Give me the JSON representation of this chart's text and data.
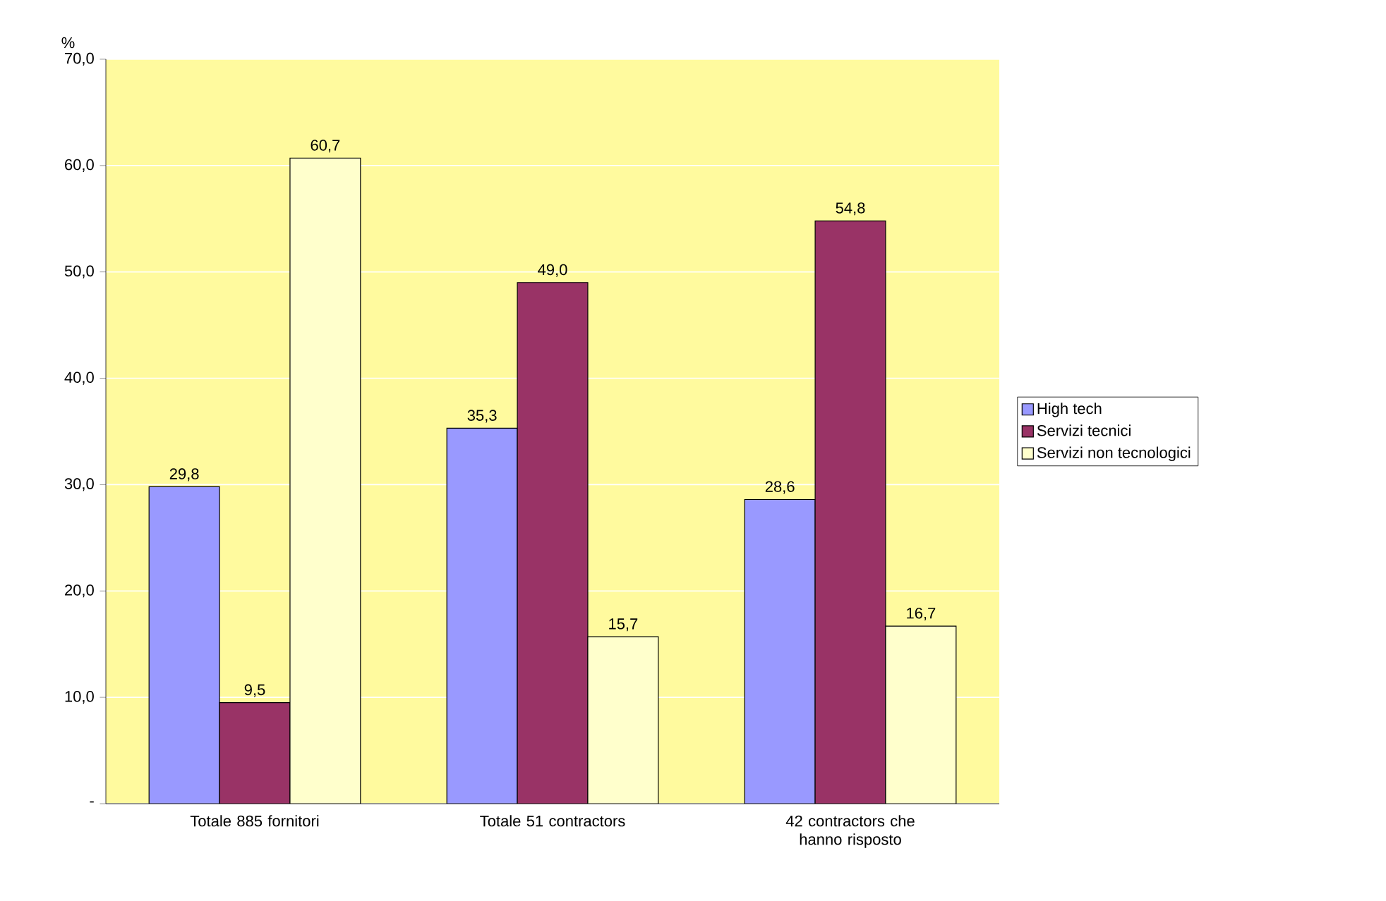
{
  "chart_data": {
    "type": "bar",
    "ylabel": "%",
    "categories": [
      "Totale 885 fornitori",
      "Totale 51 contractors",
      "42 contractors che hanno risposto"
    ],
    "series": [
      {
        "name": "High tech",
        "color": "#9999ff",
        "values": [
          29.8,
          35.3,
          28.6
        ],
        "value_labels": [
          "29,8",
          "35,3",
          "28,6"
        ]
      },
      {
        "name": "Servizi tecnici",
        "color": "#993366",
        "values": [
          9.5,
          49.0,
          54.8
        ],
        "value_labels": [
          "9,5",
          "49,0",
          "54,8"
        ]
      },
      {
        "name": "Servizi non tecnologici",
        "color": "#ffffcc",
        "values": [
          60.7,
          15.7,
          16.7
        ],
        "value_labels": [
          "60,7",
          "15,7",
          "16,7"
        ]
      }
    ],
    "ylim": [
      0,
      70
    ],
    "yticks": [
      {
        "value": 0,
        "label": "-"
      },
      {
        "value": 10,
        "label": "10,0"
      },
      {
        "value": 20,
        "label": "20,0"
      },
      {
        "value": 30,
        "label": "30,0"
      },
      {
        "value": 40,
        "label": "40,0"
      },
      {
        "value": 50,
        "label": "50,0"
      },
      {
        "value": 60,
        "label": "60,0"
      },
      {
        "value": 70,
        "label": "70,0"
      }
    ],
    "grid": "y",
    "legend": "right"
  }
}
